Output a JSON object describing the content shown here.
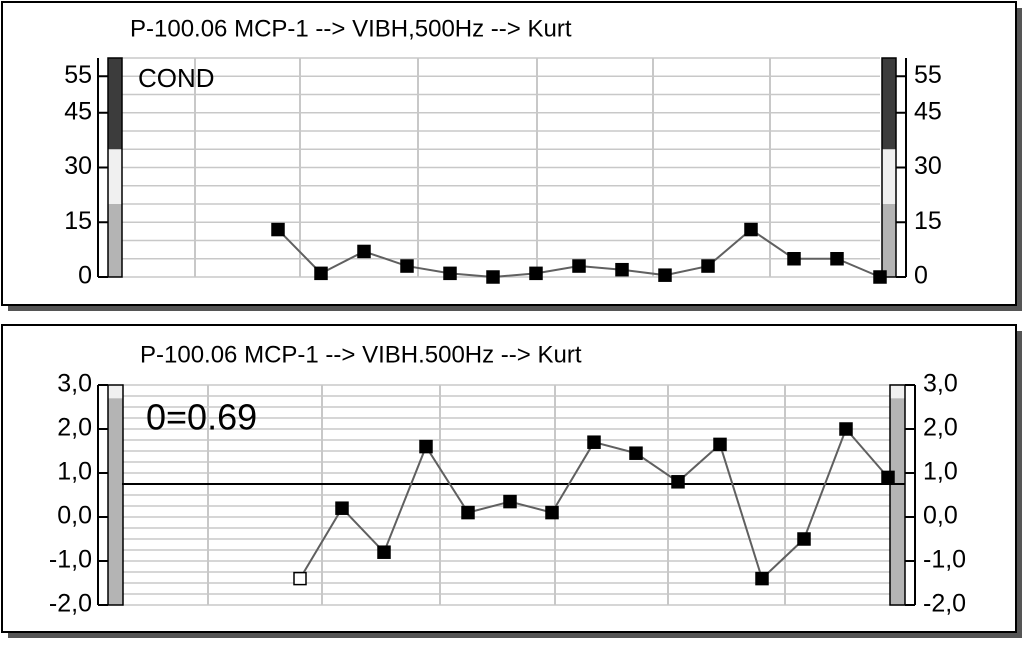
{
  "chart_data": [
    {
      "type": "line",
      "title": "P-100.06 MCP-1 --> VIBH,500Hz --> Kurt",
      "annotation": "COND",
      "values": [
        null,
        null,
        null,
        null,
        13,
        1,
        7,
        3,
        1,
        0,
        1,
        3,
        2,
        0.5,
        3,
        13,
        5,
        5,
        0
      ],
      "color": "#000000",
      "line_color": "#606060",
      "ylim": [
        0,
        60
      ],
      "yticks": [
        0,
        15,
        30,
        45,
        55
      ],
      "grid": true,
      "minor_grid_step": 5,
      "bands": [
        {
          "from": 0,
          "to": 20,
          "color": "#b4b4b4"
        },
        {
          "from": 20,
          "to": 35,
          "color": "#f0f0f0"
        },
        {
          "from": 35,
          "to": 60,
          "color": "#3c3c3c"
        }
      ]
    },
    {
      "type": "line",
      "title": "P-100.06 MCP-1 --> VIBH.500Hz --> Kurt",
      "annotation": "0=0.69",
      "values": [
        null,
        null,
        null,
        null,
        -1.4,
        0.2,
        -0.8,
        1.6,
        0.1,
        0.35,
        0.1,
        1.7,
        1.45,
        0.8,
        1.65,
        -1.4,
        -0.5,
        2.0,
        0.9
      ],
      "color": "#000000",
      "line_color": "#606060",
      "reference_line": 0.75,
      "ylim": [
        -2,
        3
      ],
      "yticks": [
        {
          "value": -2,
          "label": "-2,0"
        },
        {
          "value": -1,
          "label": "-1,0"
        },
        {
          "value": 0,
          "label": "0,0"
        },
        {
          "value": 1,
          "label": "1,0"
        },
        {
          "value": 2,
          "label": "2,0"
        },
        {
          "value": 3,
          "label": "3,0"
        }
      ],
      "grid": true,
      "minor_grid_step": 0.25,
      "bands": [
        {
          "from": -2,
          "to": 2.7,
          "color": "#b4b4b4"
        },
        {
          "from": 2.7,
          "to": 3,
          "color": "#f0f0f0"
        }
      ]
    }
  ]
}
